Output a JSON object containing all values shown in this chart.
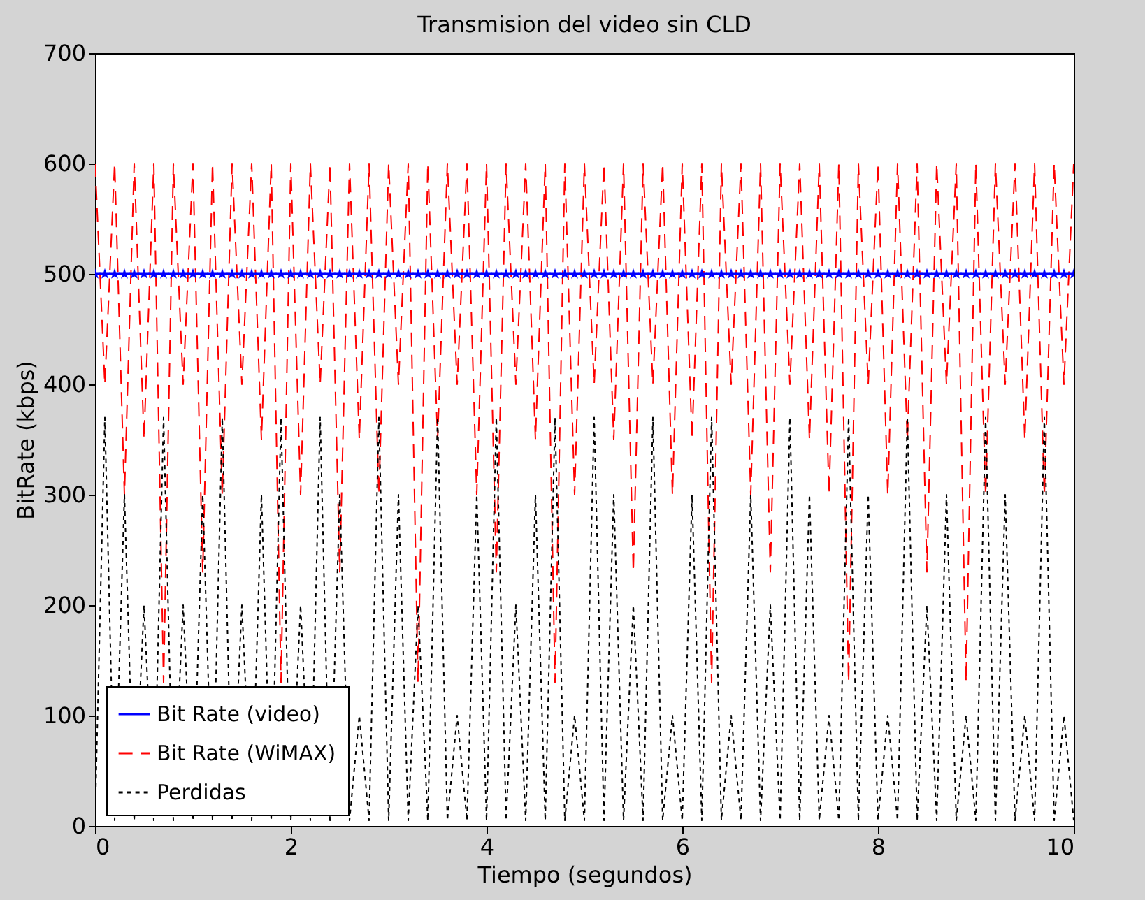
{
  "chart_data": {
    "type": "line",
    "title": "Transmision del video sin CLD",
    "xlabel": "Tiempo (segundos)",
    "ylabel": "BitRate (kbps)",
    "x": [
      0,
      0.1,
      0.2,
      0.3,
      0.4,
      0.5,
      0.6,
      0.7,
      0.8,
      0.9,
      1,
      1.1,
      1.2,
      1.3,
      1.4,
      1.5,
      1.6,
      1.7,
      1.8,
      1.9,
      2,
      2.1,
      2.2,
      2.3,
      2.4,
      2.5,
      2.6,
      2.7,
      2.8,
      2.9,
      3,
      3.1,
      3.2,
      3.3,
      3.4,
      3.5,
      3.6,
      3.7,
      3.8,
      3.9,
      4,
      4.1,
      4.2,
      4.3,
      4.4,
      4.5,
      4.6,
      4.7,
      4.8,
      4.9,
      5,
      5.1,
      5.2,
      5.3,
      5.4,
      5.5,
      5.6,
      5.7,
      5.8,
      5.9,
      6,
      6.1,
      6.2,
      6.3,
      6.4,
      6.5,
      6.6,
      6.7,
      6.8,
      6.9,
      7,
      7.1,
      7.2,
      7.3,
      7.4,
      7.5,
      7.6,
      7.7,
      7.8,
      7.9,
      8,
      8.1,
      8.2,
      8.3,
      8.4,
      8.5,
      8.6,
      8.7,
      8.8,
      8.9,
      9,
      9.1,
      9.2,
      9.3,
      9.4,
      9.5,
      9.6,
      9.7,
      9.8,
      9.9,
      10
    ],
    "series": [
      {
        "name": "Bit Rate (video)",
        "color": "#0000ff",
        "line_style": "solid",
        "marker": "star",
        "values": [
          500,
          500,
          500,
          500,
          500,
          500,
          500,
          500,
          500,
          500,
          500,
          500,
          500,
          500,
          500,
          500,
          500,
          500,
          500,
          500,
          500,
          500,
          500,
          500,
          500,
          500,
          500,
          500,
          500,
          500,
          500,
          500,
          500,
          500,
          500,
          500,
          500,
          500,
          500,
          500,
          500,
          500,
          500,
          500,
          500,
          500,
          500,
          500,
          500,
          500,
          500,
          500,
          500,
          500,
          500,
          500,
          500,
          500,
          500,
          500,
          500,
          500,
          500,
          500,
          500,
          500,
          500,
          500,
          500,
          500,
          500,
          500,
          500,
          500,
          500,
          500,
          500,
          500,
          500,
          500,
          500,
          500,
          500,
          500,
          500,
          500,
          500,
          500,
          500,
          500,
          500,
          500,
          500,
          500,
          500,
          500,
          500,
          500,
          500,
          500,
          500
        ]
      },
      {
        "name": "Bit Rate (WiMAX)",
        "color": "#ff0000",
        "line_style": "dashed",
        "marker": "none",
        "values": [
          600,
          400,
          600,
          300,
          600,
          350,
          600,
          130,
          600,
          400,
          600,
          230,
          600,
          300,
          600,
          400,
          600,
          350,
          600,
          130,
          600,
          300,
          600,
          400,
          600,
          230,
          600,
          350,
          600,
          300,
          600,
          400,
          600,
          130,
          600,
          350,
          600,
          400,
          600,
          300,
          600,
          230,
          600,
          400,
          600,
          350,
          600,
          130,
          600,
          300,
          600,
          400,
          600,
          350,
          600,
          230,
          600,
          400,
          600,
          300,
          600,
          350,
          600,
          130,
          600,
          400,
          600,
          300,
          600,
          230,
          600,
          400,
          600,
          350,
          600,
          300,
          600,
          130,
          600,
          400,
          600,
          300,
          600,
          350,
          600,
          230,
          600,
          400,
          600,
          130,
          600,
          300,
          600,
          400,
          600,
          350,
          600,
          300,
          600,
          400,
          600
        ]
      },
      {
        "name": "Perdidas",
        "color": "#000000",
        "line_style": "dotted",
        "marker": "none",
        "values": [
          5,
          370,
          5,
          300,
          5,
          200,
          5,
          370,
          5,
          200,
          5,
          300,
          5,
          370,
          5,
          200,
          5,
          300,
          5,
          370,
          5,
          200,
          5,
          370,
          5,
          300,
          5,
          100,
          5,
          370,
          5,
          300,
          5,
          200,
          5,
          370,
          5,
          100,
          5,
          300,
          5,
          370,
          5,
          200,
          5,
          300,
          5,
          370,
          5,
          100,
          5,
          370,
          5,
          300,
          5,
          200,
          5,
          370,
          5,
          100,
          5,
          300,
          5,
          370,
          5,
          100,
          5,
          300,
          5,
          200,
          5,
          370,
          5,
          300,
          5,
          100,
          5,
          370,
          5,
          300,
          5,
          100,
          5,
          370,
          5,
          200,
          5,
          300,
          5,
          100,
          5,
          370,
          5,
          300,
          5,
          100,
          5,
          370,
          5,
          100,
          5
        ]
      }
    ],
    "xlim": [
      0,
      10
    ],
    "xticks": [
      0,
      2,
      4,
      6,
      8,
      10
    ],
    "ylim": [
      0,
      700
    ],
    "yticks": [
      0,
      100,
      200,
      300,
      400,
      500,
      600,
      700
    ],
    "grid": false,
    "legend": "bottom left"
  }
}
